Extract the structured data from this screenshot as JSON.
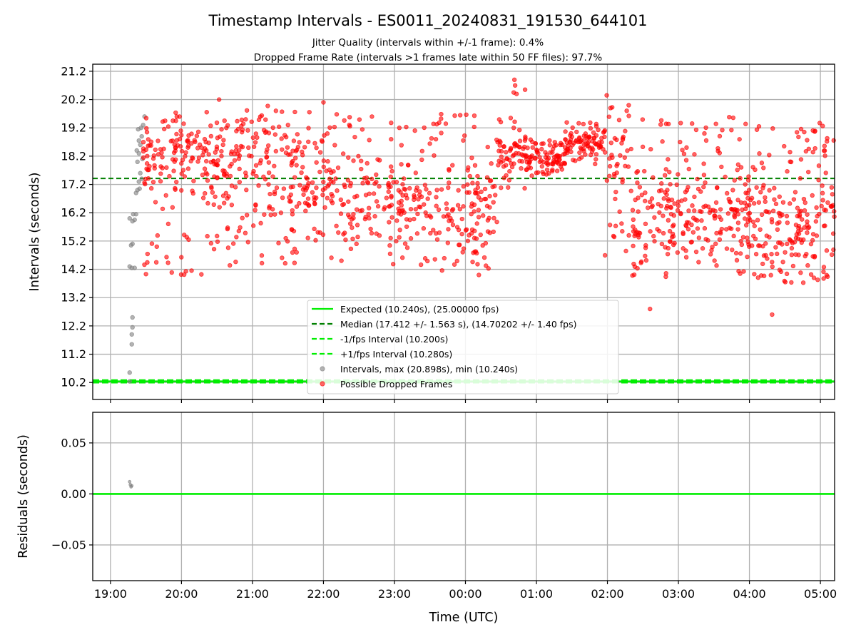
{
  "chart_data": [
    {
      "type": "scatter",
      "title": "Timestamp Intervals - ES0011_20240831_191530_644101",
      "subtitle_lines": [
        "Jitter Quality (intervals within +/-1 frame): 0.4%",
        "Dropped Frame Rate (intervals >1 frames late within 50 FF files): 97.7%"
      ],
      "xlabel": "",
      "ylabel": "Intervals (seconds)",
      "x_range_hours": [
        18.75,
        29.2
      ],
      "ylim": [
        9.6,
        21.45
      ],
      "yticks": [
        "10.2",
        "11.2",
        "12.2",
        "13.2",
        "14.2",
        "15.2",
        "16.2",
        "17.2",
        "18.2",
        "19.2",
        "20.2",
        "21.2"
      ],
      "grid": true,
      "legend_position": "lower-center",
      "reference_lines": [
        {
          "key": "expected",
          "value": 10.24,
          "color": "#00ee00",
          "style": "solid"
        },
        {
          "key": "median",
          "value": 17.412,
          "color": "#008000",
          "style": "dashed"
        },
        {
          "key": "minus",
          "value": 10.2,
          "color": "#00ee00",
          "style": "dashed"
        },
        {
          "key": "plus",
          "value": 10.28,
          "color": "#00ee00",
          "style": "dashed"
        }
      ],
      "legend": [
        {
          "key": "expected",
          "label": "Expected (10.240s), (25.00000 fps)"
        },
        {
          "key": "median",
          "label": "Median (17.412 +/- 1.563 s), (14.70202 +/- 1.40 fps)"
        },
        {
          "key": "minus",
          "label": "-1/fps Interval (10.200s)"
        },
        {
          "key": "plus",
          "label": "+1/fps Interval (10.280s)"
        },
        {
          "key": "intervals",
          "label": "Intervals, max (20.898s), min (10.240s)"
        },
        {
          "key": "dropped",
          "label": "Possible Dropped Frames"
        }
      ],
      "series": [
        {
          "name": "Intervals, max (20.898s), min (10.240s)",
          "color": "#808080",
          "points": [
            [
              19.27,
              10.24
            ],
            [
              19.27,
              10.55
            ],
            [
              19.3,
              11.55
            ],
            [
              19.3,
              11.9
            ],
            [
              19.31,
              12.15
            ],
            [
              19.31,
              12.5
            ],
            [
              19.27,
              14.3
            ],
            [
              19.3,
              14.25
            ],
            [
              19.34,
              14.25
            ],
            [
              19.29,
              15.05
            ],
            [
              19.31,
              15.1
            ],
            [
              19.27,
              16.0
            ],
            [
              19.31,
              15.9
            ],
            [
              19.34,
              15.95
            ],
            [
              19.32,
              16.15
            ],
            [
              19.36,
              16.15
            ],
            [
              19.36,
              16.9
            ],
            [
              19.38,
              17.0
            ],
            [
              19.41,
              17.05
            ],
            [
              19.4,
              17.3
            ],
            [
              19.42,
              17.6
            ],
            [
              19.38,
              18.0
            ],
            [
              19.4,
              18.3
            ],
            [
              19.42,
              18.6
            ],
            [
              19.44,
              18.9
            ],
            [
              19.39,
              19.15
            ],
            [
              19.43,
              19.2
            ],
            [
              19.46,
              19.3
            ],
            [
              19.48,
              19.6
            ],
            [
              19.45,
              18.1
            ],
            [
              19.4,
              18.75
            ],
            [
              19.37,
              18.4
            ],
            [
              19.44,
              17.4
            ]
          ]
        },
        {
          "name": "Possible Dropped Frames",
          "color": "#ff0000",
          "generator": {
            "seed": 20240831,
            "segments": [
              {
                "from": 19.45,
                "to": 20.4,
                "n": 150,
                "lo": 14.0,
                "hi": 19.8,
                "center": 18.2,
                "spread": 1.2
              },
              {
                "from": 20.4,
                "to": 21.2,
                "n": 130,
                "lo": 14.3,
                "hi": 19.9,
                "center": 18.0,
                "spread": 1.3
              },
              {
                "from": 21.2,
                "to": 22.2,
                "n": 150,
                "lo": 14.3,
                "hi": 20.0,
                "center": 17.2,
                "spread": 1.6
              },
              {
                "from": 22.2,
                "to": 23.4,
                "n": 160,
                "lo": 14.2,
                "hi": 19.6,
                "center": 16.6,
                "spread": 1.5
              },
              {
                "from": 23.4,
                "to": 24.45,
                "n": 150,
                "lo": 14.0,
                "hi": 19.7,
                "center": 16.0,
                "spread": 1.6
              },
              {
                "from": 24.45,
                "to": 24.85,
                "n": 60,
                "lo": 17.0,
                "hi": 19.6,
                "center": 18.3,
                "spread": 0.6
              },
              {
                "from": 24.85,
                "to": 25.4,
                "n": 90,
                "lo": 17.5,
                "hi": 18.8,
                "center": 18.05,
                "spread": 0.35
              },
              {
                "from": 25.4,
                "to": 25.95,
                "n": 90,
                "lo": 17.9,
                "hi": 19.4,
                "center": 18.7,
                "spread": 0.4
              },
              {
                "from": 25.95,
                "to": 26.35,
                "n": 50,
                "lo": 14.3,
                "hi": 20.0,
                "center": 18.5,
                "spread": 1.5
              },
              {
                "from": 26.35,
                "to": 27.3,
                "n": 150,
                "lo": 13.9,
                "hi": 19.6,
                "center": 15.8,
                "spread": 1.4
              },
              {
                "from": 27.3,
                "to": 28.2,
                "n": 150,
                "lo": 13.7,
                "hi": 19.6,
                "center": 16.2,
                "spread": 1.5
              },
              {
                "from": 28.2,
                "to": 29.2,
                "n": 170,
                "lo": 13.7,
                "hi": 19.4,
                "center": 15.6,
                "spread": 1.5
              }
            ],
            "extra_points": [
              [
                24.69,
                20.9
              ],
              [
                24.7,
                20.7
              ],
              [
                24.68,
                20.45
              ],
              [
                24.72,
                20.4
              ],
              [
                24.84,
                20.55
              ],
              [
                25.99,
                20.35
              ],
              [
                20.53,
                20.2
              ],
              [
                22.0,
                20.1
              ],
              [
                26.6,
                12.8
              ],
              [
                28.32,
                12.6
              ],
              [
                24.68,
                19.2
              ],
              [
                26.3,
                20.0
              ]
            ]
          }
        }
      ]
    },
    {
      "type": "scatter",
      "title": "",
      "xlabel": "Time (UTC)",
      "ylabel": "Residuals (seconds)",
      "x_range_hours": [
        18.75,
        29.2
      ],
      "ylim": [
        -0.085,
        0.08
      ],
      "yticks": [
        {
          "value": 0.05,
          "label": "0.05"
        },
        {
          "value": 0.0,
          "label": "0.00"
        },
        {
          "value": -0.05,
          "label": "−0.05"
        }
      ],
      "xticks": [
        {
          "value": 19,
          "label": "19:00"
        },
        {
          "value": 20,
          "label": "20:00"
        },
        {
          "value": 21,
          "label": "21:00"
        },
        {
          "value": 22,
          "label": "22:00"
        },
        {
          "value": 23,
          "label": "23:00"
        },
        {
          "value": 24,
          "label": "00:00"
        },
        {
          "value": 25,
          "label": "01:00"
        },
        {
          "value": 26,
          "label": "02:00"
        },
        {
          "value": 27,
          "label": "03:00"
        },
        {
          "value": 28,
          "label": "04:00"
        },
        {
          "value": 29,
          "label": "05:00"
        }
      ],
      "grid": true,
      "zero_line": {
        "value": 0.0,
        "color": "#00ee00"
      },
      "series": [
        {
          "name": "",
          "color": "#808080",
          "points": [
            [
              19.27,
              0.012
            ],
            [
              19.28,
              0.009
            ],
            [
              19.29,
              0.007
            ],
            [
              19.3,
              0.008
            ]
          ]
        }
      ]
    }
  ]
}
